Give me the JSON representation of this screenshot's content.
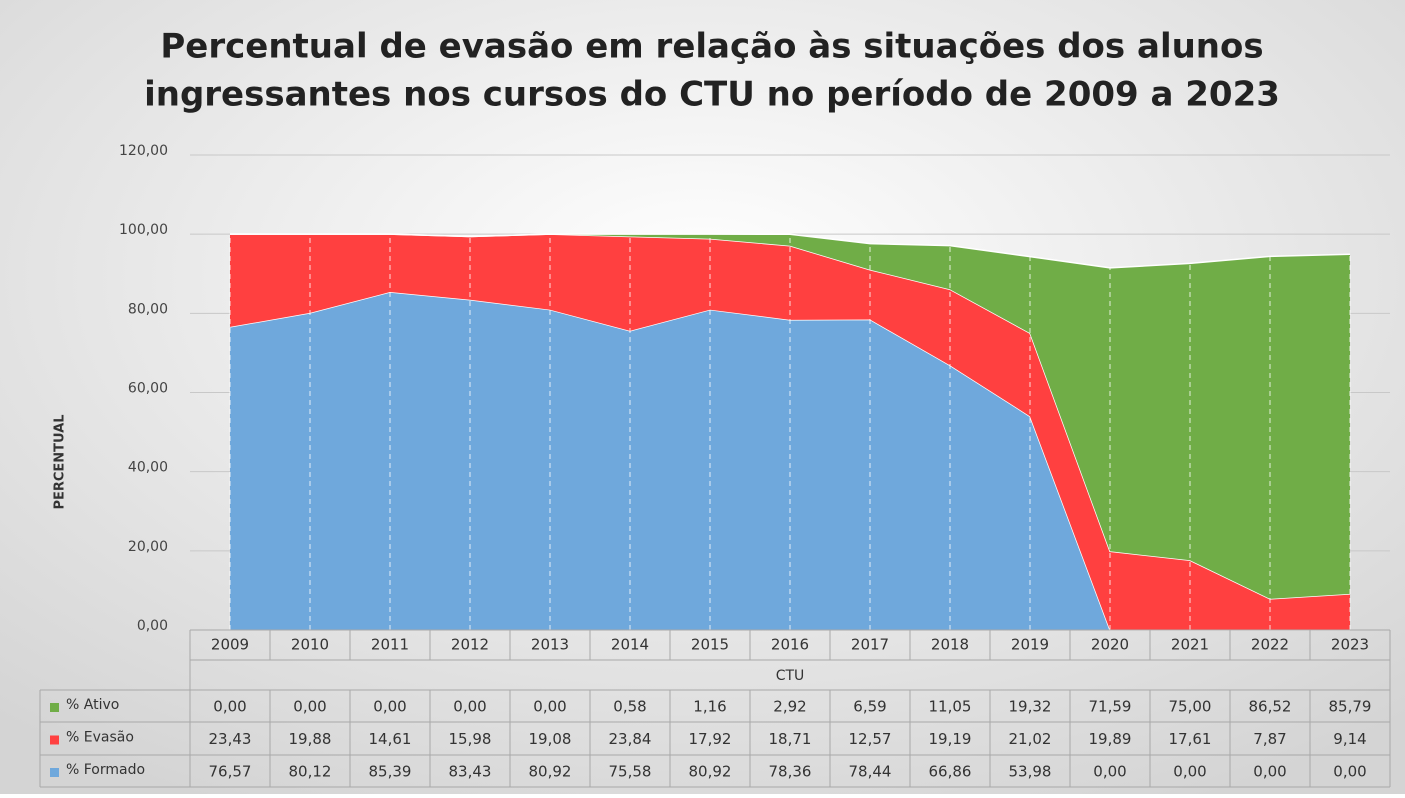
{
  "chart_data": {
    "type": "stacked_area",
    "title": [
      "Percentual de evasão em relação às situações dos alunos",
      "ingressantes nos cursos do CTU no período de 2009 a 2023"
    ],
    "y_label": "PERCENTUAL",
    "x_label": "CTU",
    "categories": [
      "2009",
      "2010",
      "2011",
      "2012",
      "2013",
      "2014",
      "2015",
      "2016",
      "2017",
      "2018",
      "2019",
      "2020",
      "2021",
      "2022",
      "2023"
    ],
    "series": [
      {
        "name": "% Ativo",
        "color": "#70ad47",
        "values": [
          0,
          0,
          0,
          0,
          0,
          0.58,
          1.16,
          2.92,
          6.59,
          11.05,
          19.32,
          71.59,
          75,
          86.52,
          85.79
        ],
        "value_labels": [
          "0,00",
          "0,00",
          "0,00",
          "0,00",
          "0,00",
          "0,58",
          "1,16",
          "2,92",
          "6,59",
          "11,05",
          "19,32",
          "71,59",
          "75,00",
          "86,52",
          "85,79"
        ]
      },
      {
        "name": "% Evasão",
        "color": "#ff4040",
        "values": [
          23.43,
          19.88,
          14.61,
          15.98,
          19.08,
          23.84,
          17.92,
          18.71,
          12.57,
          19.19,
          21.02,
          19.89,
          17.61,
          7.87,
          9.14
        ],
        "value_labels": [
          "23,43",
          "19,88",
          "14,61",
          "15,98",
          "19,08",
          "23,84",
          "17,92",
          "18,71",
          "12,57",
          "19,19",
          "21,02",
          "19,89",
          "17,61",
          "7,87",
          "9,14"
        ]
      },
      {
        "name": "% Formado",
        "color": "#6fa8dc",
        "values": [
          76.57,
          80.12,
          85.39,
          83.43,
          80.92,
          75.58,
          80.92,
          78.36,
          78.44,
          66.86,
          53.98,
          0,
          0,
          0,
          0
        ],
        "value_labels": [
          "76,57",
          "80,12",
          "85,39",
          "83,43",
          "80,92",
          "75,58",
          "80,92",
          "78,36",
          "78,44",
          "66,86",
          "53,98",
          "0,00",
          "0,00",
          "0,00",
          "0,00"
        ]
      }
    ],
    "ylim": [
      0,
      120
    ],
    "yticks": [
      {
        "value": 0,
        "label": "0,00"
      },
      {
        "value": 20,
        "label": "20,00"
      },
      {
        "value": 40,
        "label": "40,00"
      },
      {
        "value": 60,
        "label": "60,00"
      },
      {
        "value": 80,
        "label": "80,00"
      },
      {
        "value": 100,
        "label": "100,00"
      },
      {
        "value": 120,
        "label": "120,00"
      }
    ],
    "grid": true
  }
}
